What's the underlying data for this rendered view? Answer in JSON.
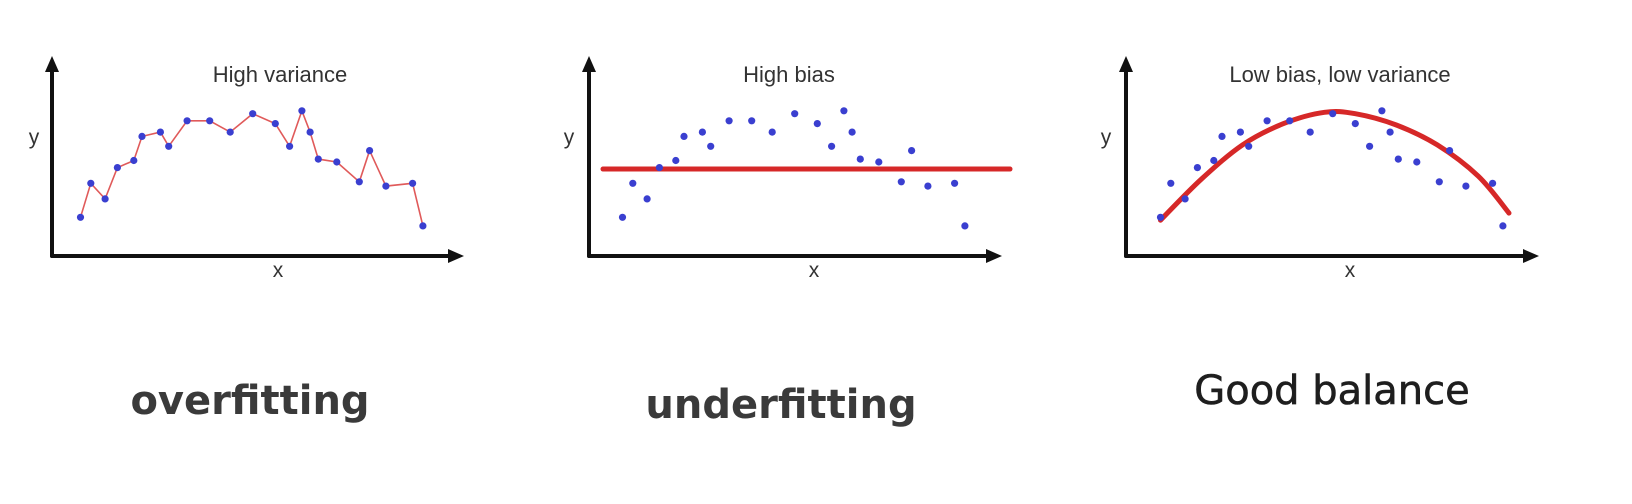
{
  "chart_data": [
    {
      "type": "scatter",
      "fit": "interpolating-line",
      "title": "High variance",
      "xlabel": "x",
      "ylabel": "y",
      "caption": "overfitting",
      "xlim": [
        0,
        20
      ],
      "ylim": [
        0,
        10
      ],
      "points": [
        [
          1,
          2.3
        ],
        [
          1.5,
          4.7
        ],
        [
          2.2,
          3.6
        ],
        [
          2.8,
          5.8
        ],
        [
          3.6,
          6.3
        ],
        [
          4,
          8
        ],
        [
          4.9,
          8.3
        ],
        [
          5.3,
          7.3
        ],
        [
          6.2,
          9.1
        ],
        [
          7.3,
          9.1
        ],
        [
          8.3,
          8.3
        ],
        [
          9.4,
          9.6
        ],
        [
          10.5,
          8.9
        ],
        [
          11.2,
          7.3
        ],
        [
          11.8,
          9.8
        ],
        [
          12.2,
          8.3
        ],
        [
          12.6,
          6.4
        ],
        [
          13.5,
          6.2
        ],
        [
          14.6,
          4.8
        ],
        [
          15.1,
          7
        ],
        [
          15.9,
          4.5
        ],
        [
          17.2,
          4.7
        ],
        [
          17.7,
          1.7
        ]
      ],
      "series": [
        {
          "line_color": "#e05a5a",
          "point_color": "#3a3fd0"
        }
      ]
    },
    {
      "type": "scatter",
      "fit": "horizontal-line",
      "title": "High bias",
      "xlabel": "x",
      "ylabel": "y",
      "caption": "underfitting",
      "xlim": [
        0,
        20
      ],
      "ylim": [
        0,
        10
      ],
      "fit_y": 5.7,
      "points": [
        [
          1,
          2.3
        ],
        [
          1.5,
          4.7
        ],
        [
          2.2,
          3.6
        ],
        [
          2.8,
          5.8
        ],
        [
          3.6,
          6.3
        ],
        [
          4,
          8
        ],
        [
          4.9,
          8.3
        ],
        [
          5.3,
          7.3
        ],
        [
          6.2,
          9.1
        ],
        [
          7.3,
          9.1
        ],
        [
          8.3,
          8.3
        ],
        [
          9.4,
          9.6
        ],
        [
          10.5,
          8.9
        ],
        [
          11.2,
          7.3
        ],
        [
          11.8,
          9.8
        ],
        [
          12.2,
          8.3
        ],
        [
          12.6,
          6.4
        ],
        [
          13.5,
          6.2
        ],
        [
          14.6,
          4.8
        ],
        [
          15.1,
          7
        ],
        [
          15.9,
          4.5
        ],
        [
          17.2,
          4.7
        ],
        [
          17.7,
          1.7
        ]
      ],
      "series": [
        {
          "line_color": "#d62828",
          "point_color": "#3a3fd0"
        }
      ]
    },
    {
      "type": "scatter",
      "fit": "quadratic-curve",
      "title": "Low bias, low variance",
      "xlabel": "x",
      "ylabel": "y",
      "caption": "Good balance",
      "xlim": [
        0,
        20
      ],
      "ylim": [
        0,
        10
      ],
      "curve": [
        [
          1,
          2.1
        ],
        [
          3,
          5
        ],
        [
          5,
          7.4
        ],
        [
          7,
          8.9
        ],
        [
          9,
          9.7
        ],
        [
          10.5,
          9.6
        ],
        [
          12.5,
          8.8
        ],
        [
          14.5,
          7.4
        ],
        [
          16.5,
          5.2
        ],
        [
          18,
          2.6
        ]
      ],
      "points": [
        [
          1,
          2.3
        ],
        [
          1.5,
          4.7
        ],
        [
          2.2,
          3.6
        ],
        [
          2.8,
          5.8
        ],
        [
          3.6,
          6.3
        ],
        [
          4,
          8
        ],
        [
          4.9,
          8.3
        ],
        [
          5.3,
          7.3
        ],
        [
          6.2,
          9.1
        ],
        [
          7.3,
          9.1
        ],
        [
          8.3,
          8.3
        ],
        [
          9.4,
          9.6
        ],
        [
          10.5,
          8.9
        ],
        [
          11.2,
          7.3
        ],
        [
          11.8,
          9.8
        ],
        [
          12.2,
          8.3
        ],
        [
          12.6,
          6.4
        ],
        [
          13.5,
          6.2
        ],
        [
          14.6,
          4.8
        ],
        [
          15.1,
          7
        ],
        [
          15.9,
          4.5
        ],
        [
          17.2,
          4.7
        ],
        [
          17.7,
          1.7
        ]
      ],
      "series": [
        {
          "line_color": "#d62828",
          "point_color": "#3a3fd0"
        }
      ]
    }
  ]
}
